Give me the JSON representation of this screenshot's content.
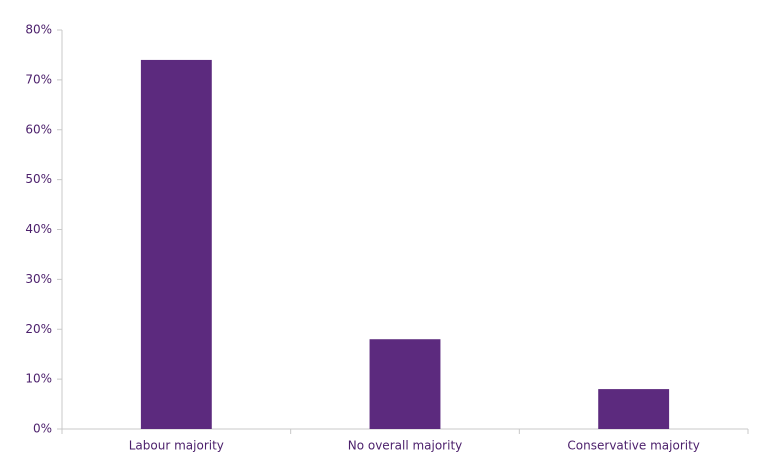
{
  "chart_data": {
    "type": "bar",
    "categories": [
      "Labour majority",
      "No overall majority",
      "Conservative majority"
    ],
    "values": [
      74,
      18,
      8
    ],
    "color": "#5c2a7e",
    "ylim": [
      0,
      80
    ],
    "yticks": [
      {
        "value": 0,
        "label": "0%"
      },
      {
        "value": 10,
        "label": "10%"
      },
      {
        "value": 20,
        "label": "20%"
      },
      {
        "value": 30,
        "label": "30%"
      },
      {
        "value": 40,
        "label": "40%"
      },
      {
        "value": 50,
        "label": "50%"
      },
      {
        "value": 60,
        "label": "60%"
      },
      {
        "value": 70,
        "label": "70%"
      },
      {
        "value": 80,
        "label": "80%"
      }
    ],
    "grid": false
  }
}
